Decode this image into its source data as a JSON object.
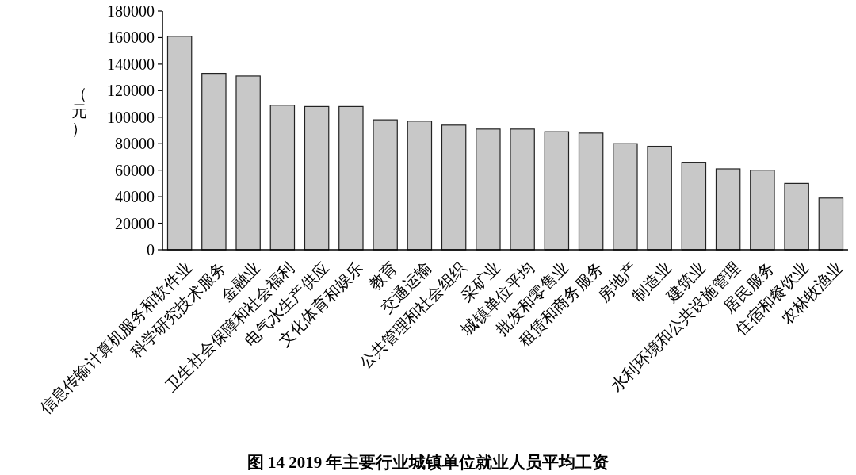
{
  "chart_data": {
    "type": "bar",
    "title": "图 14 2019 年主要行业城镇单位就业人员平均工资",
    "ylabel": "（元）",
    "categories": [
      "信息传输计算机服务和软件业",
      "科学研究技术服务",
      "金融业",
      "卫生社会保障和社会福利",
      "电气水生产供应",
      "文化体育和娱乐",
      "教育",
      "交通运输",
      "公共管理和社会组织",
      "采矿业",
      "城镇单位平均",
      "批发和零售业",
      "租赁和商务服务",
      "房地产",
      "制造业",
      "建筑业",
      "水利环境和公共设施管理",
      "居民服务",
      "住宿和餐饮业",
      "农林牧渔业"
    ],
    "values": [
      161000,
      133000,
      131000,
      109000,
      108000,
      108000,
      98000,
      97000,
      94000,
      91000,
      91000,
      89000,
      88000,
      80000,
      78000,
      66000,
      61000,
      60000,
      50000,
      39000
    ],
    "color": "#c8c8c8",
    "ylim": [
      0,
      180000
    ],
    "yticks": [
      0,
      20000,
      40000,
      60000,
      80000,
      100000,
      120000,
      140000,
      160000,
      180000
    ],
    "grid": false
  }
}
